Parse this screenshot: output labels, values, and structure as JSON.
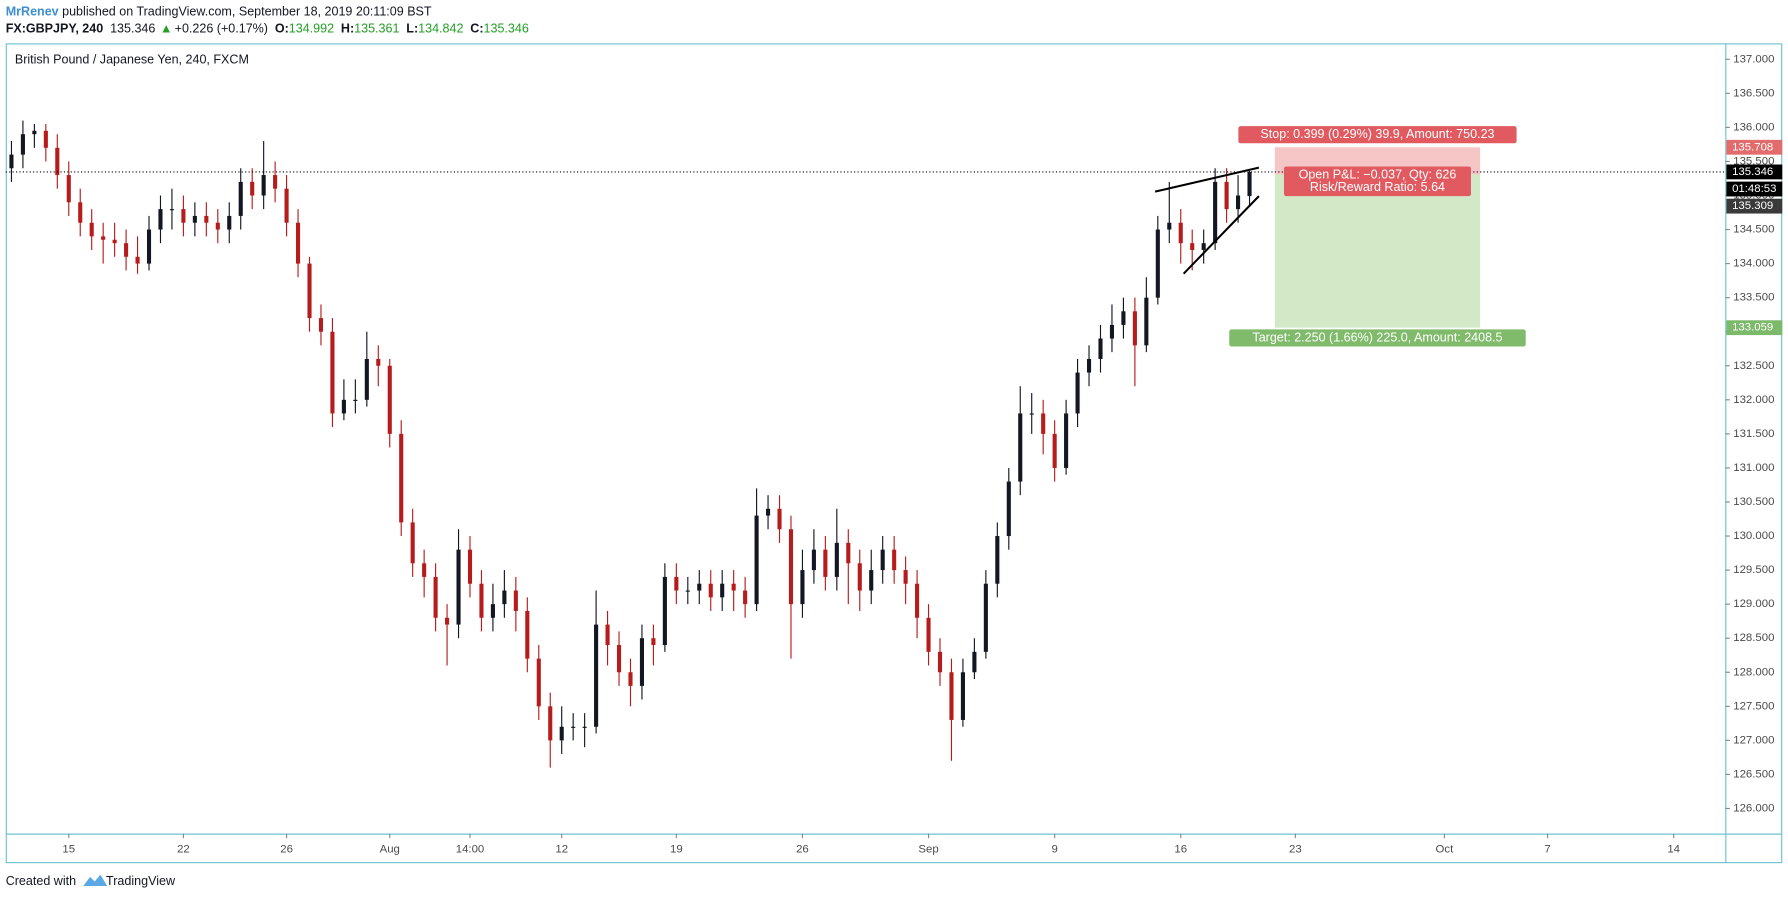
{
  "header": {
    "author": "MrRenev",
    "published": " published on TradingView.com, September 18, 2019 20:11:09 BST",
    "symbol": "FX:GBPJPY, 240",
    "price": 135.346,
    "arrow": "▲",
    "change": "+0.226 (+0.17%)",
    "ohlc": [
      {
        "label": "O:",
        "value": 134.992
      },
      {
        "label": "H:",
        "value": 135.361
      },
      {
        "label": "L:",
        "value": 134.842
      },
      {
        "label": "C:",
        "value": 135.346
      }
    ]
  },
  "chart_data": {
    "type": "candlestick",
    "title": "British Pound / Japanese Yen, 240, FXCM",
    "up_color": "#131722",
    "down_color": "#b71c1c",
    "grid": false,
    "categories": [
      null,
      null,
      null,
      null,
      null,
      "15",
      null,
      null,
      null,
      null,
      null,
      null,
      null,
      null,
      null,
      "22",
      null,
      null,
      null,
      null,
      null,
      null,
      null,
      null,
      "26",
      null,
      null,
      null,
      null,
      null,
      null,
      null,
      null,
      "Aug",
      null,
      null,
      null,
      null,
      null,
      null,
      "14:00",
      null,
      null,
      null,
      null,
      null,
      null,
      null,
      "12",
      null,
      null,
      null,
      null,
      null,
      null,
      null,
      null,
      null,
      "19",
      null,
      null,
      null,
      null,
      null,
      null,
      null,
      null,
      null,
      null,
      "26",
      null,
      null,
      null,
      null,
      null,
      null,
      null,
      null,
      null,
      null,
      "Sep",
      null,
      null,
      null,
      null,
      null,
      null,
      null,
      null,
      null,
      null,
      "9",
      null,
      null,
      null,
      null,
      null,
      null,
      null,
      null,
      null,
      null,
      "16",
      null,
      null,
      null,
      null,
      null,
      null,
      null,
      null,
      null,
      "23",
      null,
      null,
      null,
      null,
      null,
      null,
      null,
      null,
      null,
      null,
      null,
      null,
      "Oct",
      null,
      null,
      null,
      null,
      null,
      null,
      null,
      null,
      "7",
      null,
      null,
      null,
      null,
      null,
      null,
      null,
      null,
      null,
      null,
      "14",
      null,
      null,
      null,
      null
    ],
    "open": [
      135.4,
      135.6,
      135.9,
      135.95,
      135.7,
      135.3,
      134.9,
      134.6,
      134.4,
      134.35,
      134.3,
      134.1,
      134.0,
      134.5,
      134.8,
      134.8,
      134.6,
      134.7,
      134.6,
      134.5,
      134.7,
      135.2,
      135.0,
      135.3,
      135.1,
      134.6,
      134.0,
      133.2,
      133.0,
      131.8,
      132.0,
      132.0,
      132.6,
      132.5,
      131.5,
      130.2,
      129.6,
      129.4,
      128.8,
      128.7,
      129.8,
      129.3,
      128.8,
      129.0,
      129.2,
      128.9,
      128.2,
      127.5,
      127.0,
      127.2,
      127.2,
      127.2,
      128.7,
      128.4,
      128.0,
      127.8,
      128.5,
      128.4,
      129.4,
      129.2,
      129.2,
      129.3,
      129.1,
      129.3,
      129.2,
      129.0,
      130.3,
      130.4,
      130.1,
      129.0,
      129.5,
      129.8,
      129.4,
      129.9,
      129.6,
      129.2,
      129.5,
      129.8,
      129.5,
      129.3,
      128.8,
      128.3,
      128.0,
      127.3,
      128.0,
      128.3,
      129.3,
      130.0,
      130.8,
      131.8,
      131.8,
      131.5,
      131.0,
      131.8,
      132.4,
      132.6,
      132.9,
      133.1,
      133.3,
      132.8,
      133.5,
      134.5,
      134.6,
      134.3,
      134.2,
      134.3,
      135.2,
      134.8,
      134.992,
      null,
      null,
      null,
      null,
      null,
      null,
      null,
      null,
      null,
      null,
      null,
      null,
      null,
      null,
      null,
      null,
      null,
      null,
      null,
      null,
      null,
      null,
      null,
      null,
      null,
      null,
      null,
      null,
      null,
      null,
      null,
      null,
      null,
      null,
      null,
      null,
      null,
      null,
      null,
      null,
      null
    ],
    "high": [
      135.8,
      136.1,
      136.05,
      136.05,
      135.9,
      135.5,
      135.1,
      134.8,
      134.6,
      134.6,
      134.5,
      134.4,
      134.7,
      135.0,
      135.1,
      135.0,
      134.9,
      134.9,
      134.8,
      134.9,
      135.4,
      135.4,
      135.8,
      135.5,
      135.3,
      134.8,
      134.1,
      133.4,
      133.2,
      132.3,
      132.3,
      133.0,
      132.8,
      132.6,
      131.7,
      130.4,
      129.8,
      129.6,
      129.0,
      130.1,
      130.0,
      129.5,
      129.3,
      129.5,
      129.4,
      129.1,
      128.4,
      127.7,
      127.5,
      127.4,
      127.4,
      129.2,
      128.9,
      128.6,
      128.2,
      128.7,
      128.7,
      129.6,
      129.6,
      129.4,
      129.5,
      129.5,
      129.5,
      129.5,
      129.4,
      130.7,
      130.6,
      130.6,
      130.3,
      129.8,
      130.1,
      130.0,
      130.4,
      130.1,
      129.8,
      129.8,
      130.0,
      130.0,
      129.7,
      129.5,
      129.0,
      128.5,
      128.2,
      128.2,
      128.5,
      129.5,
      130.2,
      131.0,
      132.2,
      132.1,
      132.0,
      131.7,
      132.0,
      132.6,
      132.8,
      133.1,
      133.4,
      133.5,
      133.5,
      133.8,
      134.7,
      135.2,
      134.8,
      134.5,
      134.5,
      135.4,
      135.4,
      135.3,
      135.361,
      null,
      null,
      null,
      null,
      null,
      null,
      null,
      null,
      null,
      null,
      null,
      null,
      null,
      null,
      null,
      null,
      null,
      null,
      null,
      null,
      null,
      null,
      null,
      null,
      null,
      null,
      null,
      null,
      null,
      null,
      null,
      null,
      null,
      null,
      null,
      null,
      null,
      null,
      null,
      null,
      null
    ],
    "low": [
      135.2,
      135.4,
      135.7,
      135.5,
      135.1,
      134.7,
      134.4,
      134.2,
      134.0,
      134.1,
      133.9,
      133.85,
      133.9,
      134.3,
      134.5,
      134.4,
      134.4,
      134.4,
      134.3,
      134.3,
      134.5,
      134.8,
      134.8,
      134.9,
      134.4,
      133.8,
      133.0,
      132.8,
      131.6,
      131.7,
      131.8,
      131.9,
      132.2,
      131.3,
      130.0,
      129.4,
      129.1,
      128.6,
      128.1,
      128.5,
      129.1,
      128.6,
      128.6,
      128.8,
      128.6,
      128.0,
      127.3,
      126.6,
      126.8,
      127.0,
      126.9,
      127.1,
      128.1,
      127.8,
      127.5,
      127.6,
      128.1,
      128.3,
      129.0,
      129.0,
      129.0,
      128.9,
      128.9,
      128.9,
      128.8,
      128.9,
      130.1,
      129.9,
      128.2,
      128.8,
      129.3,
      129.2,
      129.2,
      129.0,
      128.9,
      129.0,
      129.3,
      129.3,
      129.0,
      128.5,
      128.1,
      127.8,
      126.7,
      127.2,
      127.9,
      128.2,
      129.1,
      129.8,
      130.6,
      131.5,
      131.2,
      130.8,
      130.9,
      131.6,
      132.2,
      132.4,
      132.7,
      132.9,
      132.2,
      132.7,
      133.4,
      134.3,
      134.0,
      133.9,
      134.0,
      134.2,
      134.6,
      134.6,
      134.842,
      null,
      null,
      null,
      null,
      null,
      null,
      null,
      null,
      null,
      null,
      null,
      null,
      null,
      null,
      null,
      null,
      null,
      null,
      null,
      null,
      null,
      null,
      null,
      null,
      null,
      null,
      null,
      null,
      null,
      null,
      null,
      null,
      null,
      null,
      null,
      null,
      null,
      null,
      null,
      null,
      null
    ],
    "close": [
      135.6,
      135.9,
      135.95,
      135.7,
      135.3,
      134.9,
      134.6,
      134.4,
      134.35,
      134.3,
      134.1,
      134.0,
      134.5,
      134.8,
      134.8,
      134.6,
      134.7,
      134.6,
      134.5,
      134.7,
      135.2,
      135.0,
      135.3,
      135.1,
      134.6,
      134.0,
      133.2,
      133.0,
      131.8,
      132.0,
      132.0,
      132.6,
      132.5,
      131.5,
      130.2,
      129.6,
      129.4,
      128.8,
      128.7,
      129.8,
      129.3,
      128.8,
      129.0,
      129.2,
      128.9,
      128.2,
      127.5,
      127.0,
      127.2,
      127.2,
      127.2,
      128.7,
      128.4,
      128.0,
      127.8,
      128.5,
      128.4,
      129.4,
      129.2,
      129.2,
      129.3,
      129.1,
      129.3,
      129.2,
      129.0,
      130.3,
      130.4,
      130.1,
      129.0,
      129.5,
      129.8,
      129.4,
      129.9,
      129.6,
      129.2,
      129.5,
      129.8,
      129.5,
      129.3,
      128.8,
      128.3,
      128.0,
      127.3,
      128.0,
      128.3,
      129.3,
      130.0,
      130.8,
      131.8,
      131.8,
      131.5,
      131.0,
      131.8,
      132.4,
      132.6,
      132.9,
      133.1,
      133.3,
      132.8,
      133.5,
      134.5,
      134.6,
      134.3,
      134.2,
      134.3,
      135.2,
      134.8,
      135.0,
      135.346,
      null,
      null,
      null,
      null,
      null,
      null,
      null,
      null,
      null,
      null,
      null,
      null,
      null,
      null,
      null,
      null,
      null,
      null,
      null,
      null,
      null,
      null,
      null,
      null,
      null,
      null,
      null,
      null,
      null,
      null,
      null,
      null,
      null,
      null,
      null,
      null,
      null,
      null,
      null,
      null,
      null
    ],
    "ylim": [
      125.632,
      137.234
    ],
    "yticks": [
      {
        "value": 126,
        "label": "126.000"
      },
      {
        "value": 126.5,
        "label": "126.500"
      },
      {
        "value": 127,
        "label": "127.000"
      },
      {
        "value": 127.5,
        "label": "127.500"
      },
      {
        "value": 128,
        "label": "128.000"
      },
      {
        "value": 128.5,
        "label": "128.500"
      },
      {
        "value": 129,
        "label": "129.000"
      },
      {
        "value": 129.5,
        "label": "129.500"
      },
      {
        "value": 130,
        "label": "130.000"
      },
      {
        "value": 130.5,
        "label": "130.500"
      },
      {
        "value": 131,
        "label": "131.000"
      },
      {
        "value": 131.5,
        "label": "131.500"
      },
      {
        "value": 132,
        "label": "132.000"
      },
      {
        "value": 132.5,
        "label": "132.500"
      },
      {
        "value": 133,
        "label": "133.000"
      },
      {
        "value": 133.5,
        "label": "133.500"
      },
      {
        "value": 134,
        "label": "134.000"
      },
      {
        "value": 134.5,
        "label": "134.500"
      },
      {
        "value": 135,
        "label": "135.000"
      },
      {
        "value": 135.5,
        "label": "135.500"
      },
      {
        "value": 136,
        "label": "136.000"
      },
      {
        "value": 136.5,
        "label": "136.500"
      },
      {
        "value": 137,
        "label": "137.000"
      }
    ],
    "last_price": 135.346,
    "countdown": "01:48:53",
    "position": {
      "stop_price": 135.708,
      "entry_price": 135.309,
      "target_price": 133.059,
      "stop_label": "Stop: 0.399 (0.29%) 39.9, Amount: 750.23",
      "pnl_label": "Open P&L: −0.037, Qty: 626",
      "rr_label": "Risk/Reward Ratio: 5.64",
      "target_label": "Target: 2.250 (1.66%) 225.0, Amount: 2408.5"
    }
  },
  "footer": {
    "created": "Created with",
    "brand": "TradingView"
  }
}
